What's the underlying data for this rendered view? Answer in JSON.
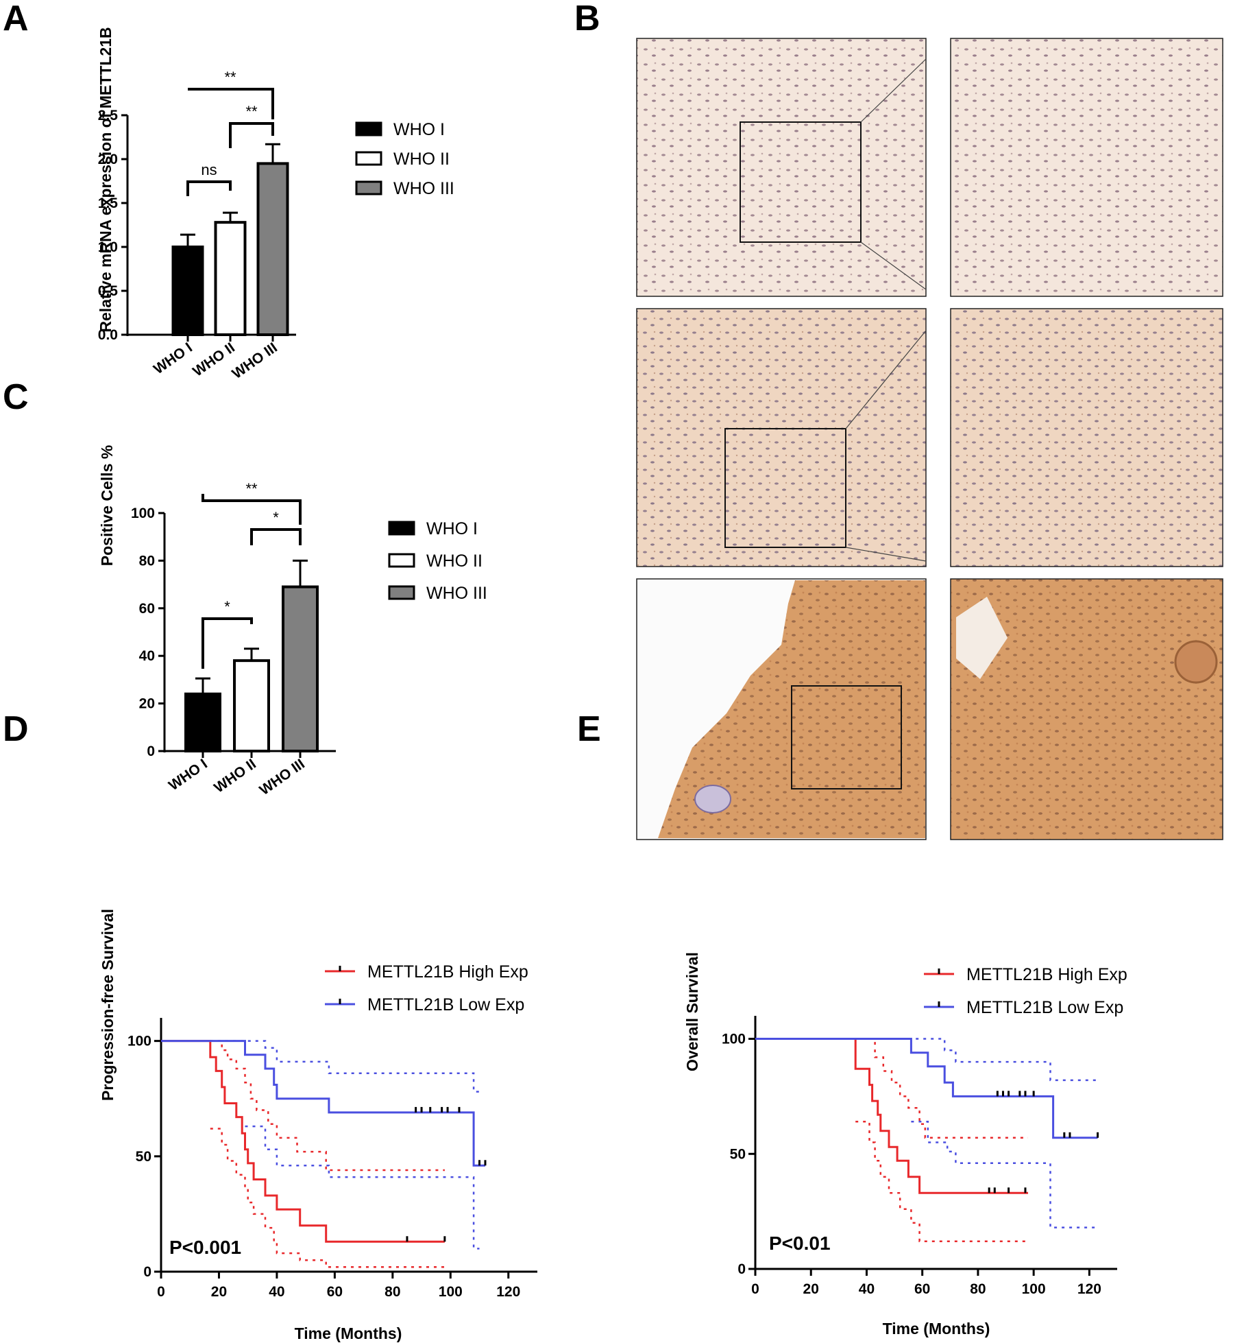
{
  "panels": {
    "A": "A",
    "B": "B",
    "C": "C",
    "D": "D",
    "E": "E"
  },
  "colors": {
    "high": "#e8282b",
    "low": "#4a4fe0",
    "who1": "#000000",
    "who2": "#ffffff",
    "who3": "#808080"
  },
  "chart_data": [
    {
      "id": "A",
      "type": "bar",
      "categories": [
        "WHO I",
        "WHO II",
        "WHO III"
      ],
      "values": [
        1.0,
        1.28,
        1.95
      ],
      "errors": [
        0.14,
        0.11,
        0.22
      ],
      "fills": [
        "#000000",
        "#ffffff",
        "#808080"
      ],
      "ylabel": "Relative mRNA expression of METTL21B",
      "ylim": [
        0,
        2.5
      ],
      "yticks": [
        "0.0",
        "0.5",
        "1.0",
        "1.5",
        "2.0",
        "2.5"
      ],
      "legend": [
        "WHO I",
        "WHO II",
        "WHO III"
      ],
      "significance": [
        {
          "pair": [
            "WHO I",
            "WHO II"
          ],
          "label": "ns"
        },
        {
          "pair": [
            "WHO II",
            "WHO III"
          ],
          "label": "**"
        },
        {
          "pair": [
            "WHO I",
            "WHO III"
          ],
          "label": "**"
        }
      ]
    },
    {
      "id": "C",
      "type": "bar",
      "categories": [
        "WHO I",
        "WHO II",
        "WHO III"
      ],
      "values": [
        24,
        38,
        69
      ],
      "errors": [
        6.5,
        5,
        11
      ],
      "fills": [
        "#000000",
        "#ffffff",
        "#808080"
      ],
      "ylabel": "Positive Cells %",
      "ylim": [
        0,
        100
      ],
      "yticks": [
        "0",
        "20",
        "40",
        "60",
        "80",
        "100"
      ],
      "legend": [
        "WHO I",
        "WHO II",
        "WHO III"
      ],
      "significance": [
        {
          "pair": [
            "WHO I",
            "WHO II"
          ],
          "label": "*"
        },
        {
          "pair": [
            "WHO II",
            "WHO III"
          ],
          "label": "*"
        },
        {
          "pair": [
            "WHO I",
            "WHO III"
          ],
          "label": "**"
        }
      ]
    },
    {
      "id": "D",
      "type": "line",
      "xlabel": "Time (Months)",
      "ylabel": "Progression-free Survival",
      "xlim": [
        0,
        130
      ],
      "ylim": [
        0,
        110
      ],
      "xticks": [
        "0",
        "20",
        "40",
        "60",
        "80",
        "100",
        "120"
      ],
      "yticks": [
        "0",
        "50",
        "100"
      ],
      "annotation": "P<0.001",
      "series": [
        {
          "name": "METTL21B High Exp",
          "color": "#e8282b",
          "steps": [
            [
              0,
              100
            ],
            [
              17,
              100
            ],
            [
              17,
              93
            ],
            [
              19,
              93
            ],
            [
              19,
              87
            ],
            [
              21,
              87
            ],
            [
              21,
              80
            ],
            [
              22,
              80
            ],
            [
              22,
              73
            ],
            [
              26,
              73
            ],
            [
              26,
              67
            ],
            [
              28,
              67
            ],
            [
              28,
              60
            ],
            [
              29,
              60
            ],
            [
              29,
              53
            ],
            [
              30,
              53
            ],
            [
              30,
              47
            ],
            [
              32,
              47
            ],
            [
              32,
              40
            ],
            [
              36,
              40
            ],
            [
              36,
              33
            ],
            [
              40,
              33
            ],
            [
              40,
              27
            ],
            [
              48,
              27
            ],
            [
              48,
              20
            ],
            [
              57,
              20
            ],
            [
              57,
              13
            ],
            [
              98,
              13
            ]
          ],
          "censors": [
            [
              85,
              13
            ],
            [
              98,
              13
            ]
          ],
          "ci_upper": [
            [
              17,
              100
            ],
            [
              21,
              100
            ],
            [
              21,
              96
            ],
            [
              23,
              96
            ],
            [
              23,
              92
            ],
            [
              26,
              92
            ],
            [
              26,
              88
            ],
            [
              29,
              88
            ],
            [
              29,
              82
            ],
            [
              31,
              82
            ],
            [
              31,
              75
            ],
            [
              33,
              75
            ],
            [
              33,
              70
            ],
            [
              37,
              70
            ],
            [
              37,
              64
            ],
            [
              40,
              64
            ],
            [
              40,
              58
            ],
            [
              47,
              58
            ],
            [
              47,
              52
            ],
            [
              57,
              52
            ],
            [
              57,
              44
            ],
            [
              98,
              44
            ]
          ],
          "ci_lower": [
            [
              17,
              62
            ],
            [
              21,
              62
            ],
            [
              21,
              55
            ],
            [
              23,
              55
            ],
            [
              23,
              48
            ],
            [
              26,
              48
            ],
            [
              26,
              42
            ],
            [
              29,
              42
            ],
            [
              29,
              36
            ],
            [
              30,
              36
            ],
            [
              30,
              30
            ],
            [
              32,
              30
            ],
            [
              32,
              25
            ],
            [
              36,
              25
            ],
            [
              36,
              19
            ],
            [
              39,
              19
            ],
            [
              39,
              13
            ],
            [
              40,
              13
            ],
            [
              40,
              8
            ],
            [
              48,
              8
            ],
            [
              48,
              5
            ],
            [
              57,
              5
            ],
            [
              57,
              2
            ],
            [
              98,
              2
            ]
          ]
        },
        {
          "name": "METTL21B Low Exp",
          "color": "#4a4fe0",
          "steps": [
            [
              0,
              100
            ],
            [
              29,
              100
            ],
            [
              29,
              94
            ],
            [
              36,
              94
            ],
            [
              36,
              88
            ],
            [
              39,
              88
            ],
            [
              39,
              81
            ],
            [
              40,
              81
            ],
            [
              40,
              75
            ],
            [
              58,
              75
            ],
            [
              58,
              69
            ],
            [
              108,
              69
            ],
            [
              108,
              46
            ],
            [
              112,
              46
            ]
          ],
          "censors": [
            [
              88,
              69
            ],
            [
              90,
              69
            ],
            [
              93,
              69
            ],
            [
              97,
              69
            ],
            [
              99,
              69
            ],
            [
              103,
              69
            ],
            [
              110,
              46
            ],
            [
              112,
              46
            ]
          ],
          "ci_upper": [
            [
              17,
              100
            ],
            [
              36,
              100
            ],
            [
              36,
              97
            ],
            [
              40,
              97
            ],
            [
              40,
              91
            ],
            [
              58,
              91
            ],
            [
              58,
              86
            ],
            [
              108,
              86
            ],
            [
              108,
              78
            ],
            [
              110,
              78
            ]
          ],
          "ci_lower": [
            [
              29,
              63
            ],
            [
              36,
              63
            ],
            [
              36,
              53
            ],
            [
              40,
              53
            ],
            [
              40,
              46
            ],
            [
              58,
              46
            ],
            [
              58,
              41
            ],
            [
              108,
              41
            ],
            [
              108,
              10
            ],
            [
              110,
              10
            ]
          ]
        }
      ]
    },
    {
      "id": "E",
      "type": "line",
      "xlabel": "Time (Months)",
      "ylabel": "Overall Survival",
      "xlim": [
        0,
        130
      ],
      "ylim": [
        0,
        110
      ],
      "xticks": [
        "0",
        "20",
        "40",
        "60",
        "80",
        "100",
        "120"
      ],
      "yticks": [
        "0",
        "50",
        "100"
      ],
      "annotation": "P<0.01",
      "series": [
        {
          "name": "METTL21B High Exp",
          "color": "#e8282b",
          "steps": [
            [
              0,
              100
            ],
            [
              36,
              100
            ],
            [
              36,
              87
            ],
            [
              41,
              87
            ],
            [
              41,
              80
            ],
            [
              42,
              80
            ],
            [
              42,
              73
            ],
            [
              44,
              73
            ],
            [
              44,
              67
            ],
            [
              45,
              67
            ],
            [
              45,
              60
            ],
            [
              48,
              60
            ],
            [
              48,
              53
            ],
            [
              51,
              53
            ],
            [
              51,
              47
            ],
            [
              55,
              47
            ],
            [
              55,
              40
            ],
            [
              59,
              40
            ],
            [
              59,
              33
            ],
            [
              98,
              33
            ]
          ],
          "censors": [
            [
              84,
              33
            ],
            [
              86,
              33
            ],
            [
              91,
              33
            ],
            [
              97,
              33
            ]
          ],
          "ci_upper": [
            [
              36,
              100
            ],
            [
              43,
              100
            ],
            [
              43,
              92
            ],
            [
              46,
              92
            ],
            [
              46,
              86
            ],
            [
              49,
              86
            ],
            [
              49,
              81
            ],
            [
              52,
              81
            ],
            [
              52,
              75
            ],
            [
              55,
              75
            ],
            [
              55,
              70
            ],
            [
              59,
              70
            ],
            [
              59,
              63
            ],
            [
              61,
              63
            ],
            [
              61,
              57
            ],
            [
              98,
              57
            ]
          ],
          "ci_lower": [
            [
              36,
              64
            ],
            [
              41,
              64
            ],
            [
              41,
              55
            ],
            [
              43,
              55
            ],
            [
              43,
              47
            ],
            [
              45,
              47
            ],
            [
              45,
              40
            ],
            [
              48,
              40
            ],
            [
              48,
              33
            ],
            [
              52,
              33
            ],
            [
              52,
              26
            ],
            [
              56,
              26
            ],
            [
              56,
              20
            ],
            [
              59,
              20
            ],
            [
              59,
              12
            ],
            [
              98,
              12
            ]
          ]
        },
        {
          "name": "METTL21B Low Exp",
          "color": "#4a4fe0",
          "steps": [
            [
              0,
              100
            ],
            [
              56,
              100
            ],
            [
              56,
              94
            ],
            [
              62,
              94
            ],
            [
              62,
              88
            ],
            [
              68,
              88
            ],
            [
              68,
              81
            ],
            [
              71,
              81
            ],
            [
              71,
              75
            ],
            [
              107,
              75
            ],
            [
              107,
              57
            ],
            [
              123,
              57
            ]
          ],
          "censors": [
            [
              87,
              75
            ],
            [
              89,
              75
            ],
            [
              91,
              75
            ],
            [
              95,
              75
            ],
            [
              97,
              75
            ],
            [
              100,
              75
            ],
            [
              111,
              57
            ],
            [
              113,
              57
            ],
            [
              123,
              57
            ]
          ],
          "ci_upper": [
            [
              36,
              100
            ],
            [
              68,
              100
            ],
            [
              68,
              95
            ],
            [
              72,
              95
            ],
            [
              72,
              90
            ],
            [
              106,
              90
            ],
            [
              106,
              82
            ],
            [
              123,
              82
            ]
          ],
          "ci_lower": [
            [
              56,
              64
            ],
            [
              62,
              64
            ],
            [
              62,
              55
            ],
            [
              69,
              55
            ],
            [
              69,
              51
            ],
            [
              72,
              51
            ],
            [
              72,
              46
            ],
            [
              106,
              46
            ],
            [
              106,
              18
            ],
            [
              123,
              18
            ]
          ]
        }
      ]
    }
  ]
}
